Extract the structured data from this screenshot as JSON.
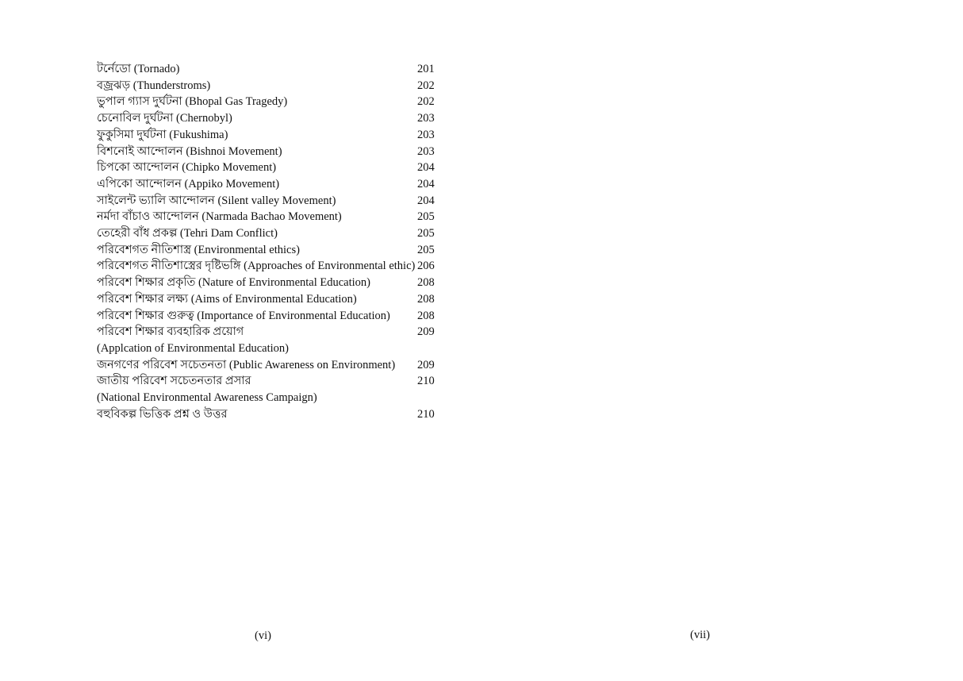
{
  "toc": [
    {
      "title": "টর্নেডো (Tornado)",
      "page": "201"
    },
    {
      "title": "বজ্রঝড় (Thunderstroms)",
      "page": "202"
    },
    {
      "title": "ভুপাল গ্যাস দুর্ঘটনা (Bhopal Gas Tragedy)",
      "page": "202"
    },
    {
      "title": "চেনোবিল দুর্ঘটনা (Chernobyl)",
      "page": "203"
    },
    {
      "title": "ফুকুসিমা দুর্ঘটনা (Fukushima)",
      "page": "203"
    },
    {
      "title": "বিশনোই আন্দোলন (Bishnoi Movement)",
      "page": "203"
    },
    {
      "title": "চিপকো আন্দোলন (Chipko Movement)",
      "page": "204"
    },
    {
      "title": "এপিকো আন্দোলন (Appiko Movement)",
      "page": "204"
    },
    {
      "title": "সাইলেন্ট ভ্যালি আন্দোলন (Silent valley Movement)",
      "page": "204"
    },
    {
      "title": "নর্মদা বাঁচাও আন্দোলন (Narmada Bachao Movement)",
      "page": "205"
    },
    {
      "title": "তেহেরী বাঁধ প্রকল্প (Tehri Dam Conflict)",
      "page": "205"
    },
    {
      "title": "পরিবেশগত নীতিশাস্ত্র (Environmental ethics)",
      "page": "205"
    },
    {
      "title": "পরিবেশগত নীতিশাস্ত্রের দৃষ্টিভঙ্গি (Approaches of Environmental ethic)",
      "page": "206"
    },
    {
      "title": "পরিবেশ শিক্ষার প্রকৃতি (Nature of Environmental Education)",
      "page": "208"
    },
    {
      "title": "পরিবেশ শিক্ষার লক্ষ্য (Aims of Environmental Education)",
      "page": "208"
    },
    {
      "title": "পরিবেশ শিক্ষার গুরুত্ব (Importance of Environmental Education)",
      "page": "208"
    },
    {
      "title": "পরিবেশ শিক্ষার ব্যবহারিক প্রয়োগ",
      "subtitle": "(Applcation of Environmental Education)",
      "page": "209"
    },
    {
      "title": "জনগণের পরিবেশ সচেতনতা (Public Awareness on Environment)",
      "page": "209"
    },
    {
      "title": "জাতীয় পরিবেশ সচেতনতার প্রসার",
      "subtitle": "(National Environmental Awareness Campaign)",
      "page": "210"
    },
    {
      "title": "বহুবিকল্প ভিত্তিক প্রশ্ন ও উত্তর",
      "page": "210"
    }
  ],
  "folios": {
    "left": "(vi)",
    "right": "(vii)"
  }
}
